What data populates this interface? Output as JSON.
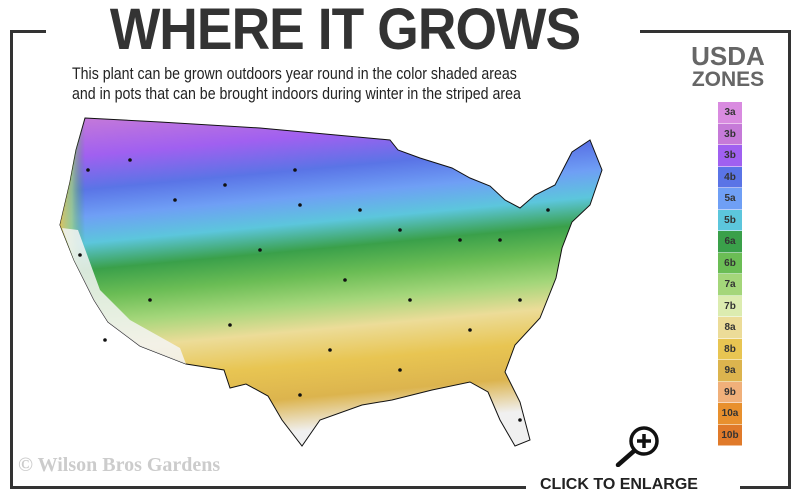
{
  "header": {
    "title": "WHERE IT GROWS",
    "subtitle_line1": "This plant can be grown outdoors year round in the color shaded areas",
    "subtitle_line2": "and in pots that can be brought indoors during winter in the striped area"
  },
  "legend": {
    "title_line1": "USDA",
    "title_line2": "ZONES",
    "zones": [
      {
        "label": "3a",
        "color": "#d98be0"
      },
      {
        "label": "3b",
        "color": "#c67ad8"
      },
      {
        "label": "3b",
        "color": "#a060f0"
      },
      {
        "label": "4b",
        "color": "#5a74e6"
      },
      {
        "label": "5a",
        "color": "#6f9ff5"
      },
      {
        "label": "5b",
        "color": "#5cc6dc"
      },
      {
        "label": "6a",
        "color": "#3aa04a"
      },
      {
        "label": "6b",
        "color": "#6bbd55"
      },
      {
        "label": "7a",
        "color": "#a4d67a"
      },
      {
        "label": "7b",
        "color": "#dcecb0"
      },
      {
        "label": "8a",
        "color": "#ecdc98"
      },
      {
        "label": "8b",
        "color": "#e8c552"
      },
      {
        "label": "9a",
        "color": "#dcb44e"
      },
      {
        "label": "9b",
        "color": "#f0b07a"
      },
      {
        "label": "10a",
        "color": "#e8902e"
      },
      {
        "label": "10b",
        "color": "#e07a2a"
      }
    ]
  },
  "footer": {
    "copyright": "© Wilson Bros Gardens",
    "enlarge_label": "CLICK TO ENLARGE",
    "enlarge_icon": "zoom-in-magnifier-icon"
  }
}
